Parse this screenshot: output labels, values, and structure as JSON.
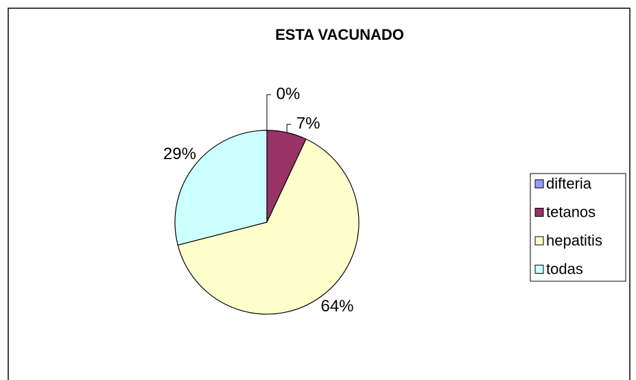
{
  "chart_data": {
    "type": "pie",
    "title": "ESTA VACUNADO",
    "categories": [
      "difteria",
      "tetanos",
      "hepatitis",
      "todas"
    ],
    "values": [
      0,
      7,
      64,
      29
    ],
    "value_labels": [
      "0%",
      "7%",
      "64%",
      "29%"
    ],
    "colors": [
      "#9999ff",
      "#993366",
      "#ffffcc",
      "#ccffff"
    ],
    "legend": "right"
  }
}
